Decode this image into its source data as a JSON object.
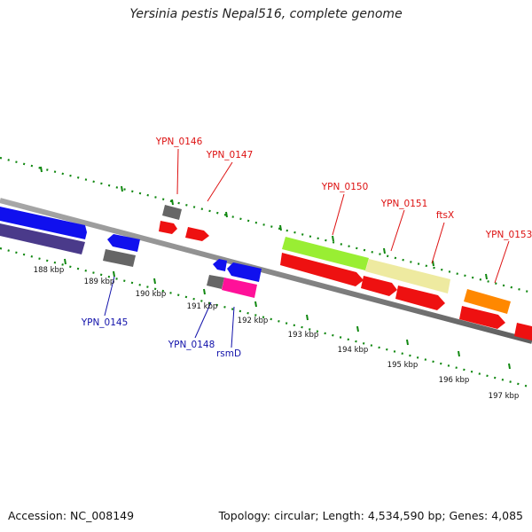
{
  "title": "Yersinia pestis Nepal516, complete genome",
  "footer": {
    "accession": "Accession: NC_008149",
    "summary": "Topology: circular; Length: 4,534,590 bp; Genes: 4,085"
  },
  "colors": {
    "backbone": "#8a8a8a",
    "ticks": "#118811",
    "label_forward": "#dd1111",
    "label_reverse": "#1111aa"
  },
  "scale": {
    "unit": "kbp",
    "labels": [
      {
        "kbp": 188,
        "text": "188 kbp"
      },
      {
        "kbp": 189,
        "text": "189 kbp"
      },
      {
        "kbp": 190,
        "text": "190 kbp"
      },
      {
        "kbp": 191,
        "text": "191 kbp"
      },
      {
        "kbp": 192,
        "text": "192 kbp"
      },
      {
        "kbp": 193,
        "text": "193 kbp"
      },
      {
        "kbp": 194,
        "text": "194 kbp"
      },
      {
        "kbp": 195,
        "text": "195 kbp"
      },
      {
        "kbp": 196,
        "text": "196 kbp"
      },
      {
        "kbp": 197,
        "text": "197 kbp"
      }
    ]
  },
  "gene_labels": [
    {
      "name": "YPN_0146",
      "strand": "forward"
    },
    {
      "name": "YPN_0147",
      "strand": "forward"
    },
    {
      "name": "YPN_0150",
      "strand": "forward"
    },
    {
      "name": "YPN_0151",
      "strand": "forward"
    },
    {
      "name": "ftsX",
      "strand": "forward"
    },
    {
      "name": "YPN_0153",
      "strand": "forward"
    },
    {
      "name": "YPN_0145",
      "strand": "reverse"
    },
    {
      "name": "YPN_0148",
      "strand": "reverse"
    },
    {
      "name": "rsmD",
      "strand": "reverse"
    }
  ]
}
